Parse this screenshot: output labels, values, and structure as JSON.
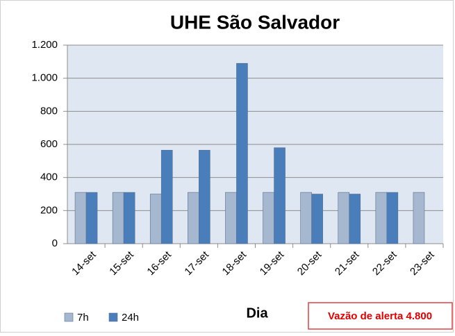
{
  "chart_data": {
    "type": "bar",
    "title": "UHE São Salvador",
    "x_label": "Dia",
    "annotation": "Vazão de alerta 4.800",
    "categories": [
      "14-set",
      "15-set",
      "16-set",
      "17-set",
      "18-set",
      "19-set",
      "20-set",
      "21-set",
      "22-set",
      "23-set"
    ],
    "series": [
      {
        "name": "7h",
        "color": "#a6b7d0",
        "values": [
          310,
          310,
          300,
          310,
          310,
          310,
          310,
          310,
          310,
          310
        ]
      },
      {
        "name": "24h",
        "color": "#4a7ebb",
        "values": [
          310,
          310,
          565,
          565,
          1090,
          580,
          300,
          300,
          310,
          null
        ]
      }
    ],
    "ylim": [
      0,
      1200
    ],
    "yticks": [
      0,
      200,
      400,
      600,
      800,
      {
        "value": 1000,
        "label": "1.000"
      },
      {
        "value": 1200,
        "label": "1.200"
      }
    ],
    "grid": true,
    "legend": "bottom-left"
  }
}
